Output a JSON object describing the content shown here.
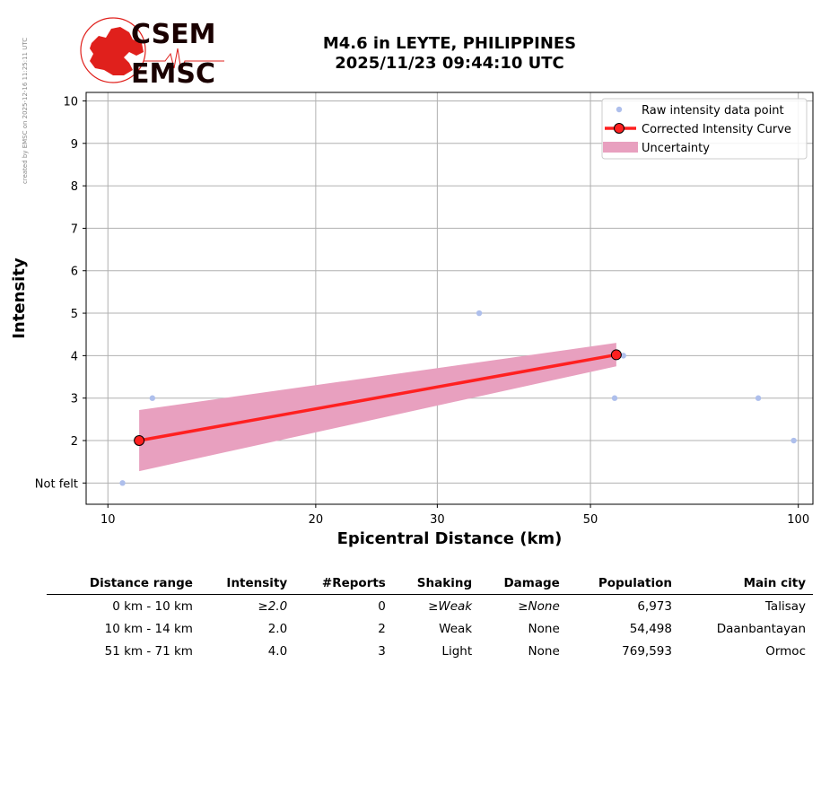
{
  "side_note": "created by EMSC on 2025-12-16 11:25:11 UTC",
  "logo": {
    "top_text": "CSEM",
    "bottom_text": "EMSC",
    "brand_color": "#e0201c"
  },
  "title": {
    "line1": "M4.6 in LEYTE, PHILIPPINES",
    "line2": "2025/11/23 09:44:10 UTC"
  },
  "chart_data": {
    "type": "line",
    "xlabel": "Epicentral Distance (km)",
    "ylabel": "Intensity",
    "x_scale": "log",
    "xlim": [
      9.3,
      105
    ],
    "ylim": [
      0.5,
      10.2
    ],
    "x_ticks": [
      10,
      20,
      30,
      50,
      100
    ],
    "y_ticks": [
      1,
      2,
      3,
      4,
      5,
      6,
      7,
      8,
      9,
      10
    ],
    "y_tick_labels": [
      "Not felt",
      "2",
      "3",
      "4",
      "5",
      "6",
      "7",
      "8",
      "9",
      "10"
    ],
    "grid": true,
    "legend_position": "top-right",
    "legend": [
      "Raw intensity data point",
      "Corrected Intensity Curve",
      "Uncertainty"
    ],
    "colors": {
      "raw": "#aebfec",
      "curve": "#ff2020",
      "uncertainty": "#e8a0bf"
    },
    "series": [
      {
        "name": "Raw intensity data point",
        "kind": "scatter",
        "x": [
          10.5,
          11.6,
          34.5,
          55.8,
          54.2,
          87.5,
          98.5
        ],
        "y": [
          1,
          3,
          5,
          4,
          3,
          3,
          2
        ]
      },
      {
        "name": "Corrected Intensity Curve",
        "kind": "line",
        "x": [
          11.1,
          54.5
        ],
        "y": [
          2.0,
          4.02
        ]
      },
      {
        "name": "Uncertainty",
        "kind": "band",
        "x": [
          11.1,
          54.5
        ],
        "lower": [
          1.28,
          3.75
        ],
        "upper": [
          2.72,
          4.3
        ]
      }
    ]
  },
  "table": {
    "headers": [
      "Distance range",
      "Intensity",
      "#Reports",
      "Shaking",
      "Damage",
      "Population",
      "Main city"
    ],
    "rows": [
      [
        "0 km -   10 km",
        "≥2.0",
        "0",
        "≥Weak",
        "≥None",
        "6,973",
        "Talisay"
      ],
      [
        "10 km -   14 km",
        "2.0",
        "2",
        "Weak",
        "None",
        "54,498",
        "Daanbantayan"
      ],
      [
        "51 km -   71 km",
        "4.0",
        "3",
        "Light",
        "None",
        "769,593",
        "Ormoc"
      ]
    ]
  }
}
